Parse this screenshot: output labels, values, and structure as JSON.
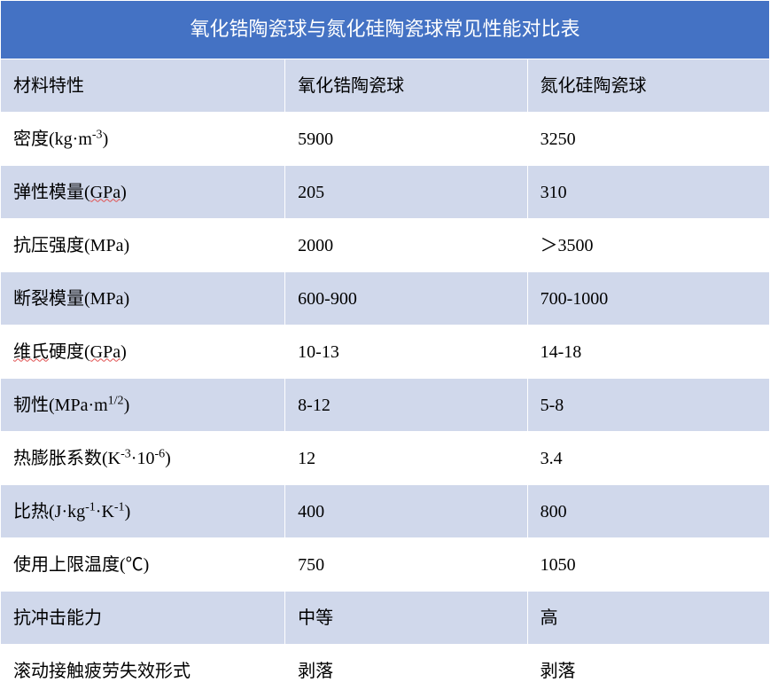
{
  "table": {
    "title": "氧化锆陶瓷球与氮化硅陶瓷球常见性能对比表",
    "title_bg": "#4472c4",
    "title_color": "#ffffff",
    "header_bg": "#d0d8eb",
    "row_even_bg": "#ffffff",
    "row_odd_bg": "#d0d8eb",
    "border_color": "#ffffff",
    "font_family": "SimSun",
    "title_fontsize": 22,
    "cell_fontsize": 20,
    "col_widths_pct": [
      37,
      31.5,
      31.5
    ],
    "columns": [
      "材料特性",
      "氧化锆陶瓷球",
      "氮化硅陶瓷球"
    ],
    "rows": [
      {
        "prop": "密度(kg·m⁻³)",
        "prop_html": "密度(kg·m<sup>-3</sup>)",
        "zirconia": "5900",
        "si3n4": "3250"
      },
      {
        "prop": "弹性模量(GPa)",
        "prop_html": "弹性模量(<span class=\"underline-red\">GPa</span>)",
        "zirconia": "205",
        "si3n4": "310"
      },
      {
        "prop": "抗压强度(MPa)",
        "prop_html": "抗压强度(MPa)",
        "zirconia": "2000",
        "si3n4": "＞3500"
      },
      {
        "prop": "断裂模量(MPa)",
        "prop_html": "断裂模量(MPa)",
        "zirconia": "600-900",
        "si3n4": "700-1000"
      },
      {
        "prop": "维氏硬度(GPa)",
        "prop_html": "<span class=\"underline-red\">维氏</span>硬度(<span class=\"underline-red\">GPa</span>)",
        "zirconia": "10-13",
        "si3n4": "14-18"
      },
      {
        "prop": "韧性(MPa·m¹ᐟ²)",
        "prop_html": "韧性(MPa·m<sup>1/2</sup>)",
        "zirconia": "8-12",
        "si3n4": "5-8"
      },
      {
        "prop": "热膨胀系数(K⁻³·10⁻⁶)",
        "prop_html": "热膨胀系数(K<sup>-3</sup>·10<sup>-6</sup>)",
        "zirconia": "12",
        "si3n4": "3.4"
      },
      {
        "prop": "比热(J·kg⁻¹·K⁻¹)",
        "prop_html": "比热(J·kg<sup>-1</sup>·K<sup>-1</sup>)",
        "zirconia": "400",
        "si3n4": "800"
      },
      {
        "prop": "使用上限温度(℃)",
        "prop_html": "使用上限温度(℃)",
        "zirconia": "750",
        "si3n4": "1050"
      },
      {
        "prop": "抗冲击能力",
        "prop_html": "抗冲击能力",
        "zirconia": "中等",
        "si3n4": "高"
      },
      {
        "prop": "滚动接触疲劳失效形式",
        "prop_html": "滚动接触疲劳失效形式",
        "zirconia": "剥落",
        "si3n4": "剥落"
      }
    ]
  }
}
